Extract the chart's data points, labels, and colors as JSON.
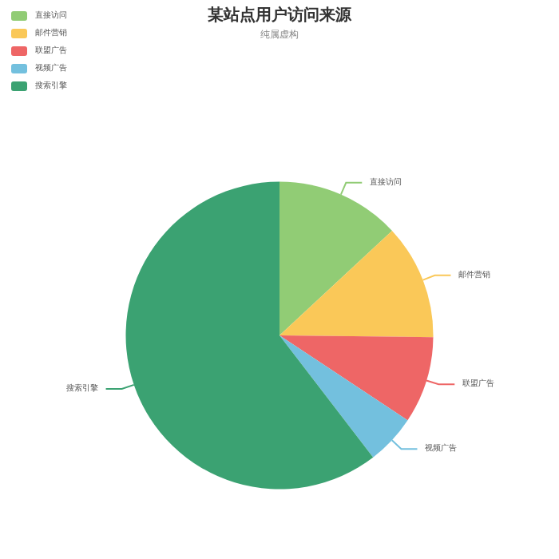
{
  "chart_data": {
    "type": "pie",
    "title": "某站点用户访问来源",
    "subtitle": "纯属虚构",
    "categories": [
      "直接访问",
      "邮件营销",
      "联盟广告",
      "视频广告",
      "搜索引擎"
    ],
    "values": [
      13.08,
      12.1,
      9.13,
      5.27,
      60.42
    ],
    "colors": [
      "#91cc75",
      "#fac858",
      "#ee6666",
      "#73c0de",
      "#3ba272"
    ],
    "legend": "top left"
  }
}
